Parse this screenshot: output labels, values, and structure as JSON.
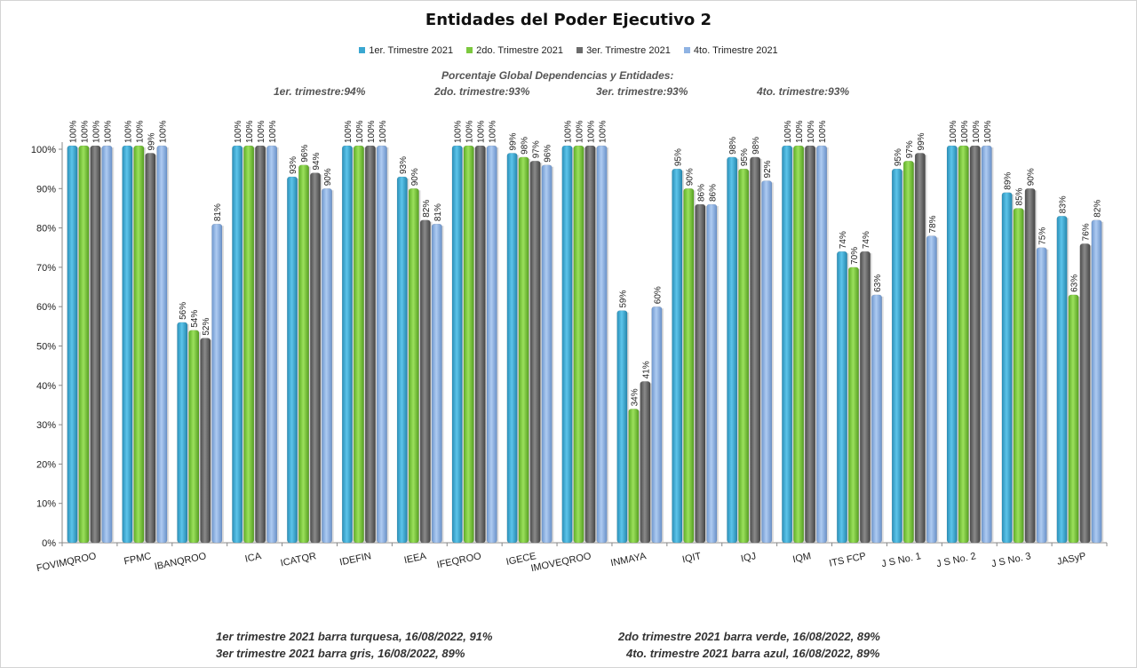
{
  "chart_data": {
    "type": "bar",
    "title": "Entidades del Poder Ejecutivo 2",
    "categories": [
      "FOVIMQROO",
      "FPMC",
      "IBANQROO",
      "ICA",
      "ICATQR",
      "IDEFIN",
      "IEEA",
      "IFEQROO",
      "IGECE",
      "IMOVEQROO",
      "INMAYA",
      "IQIT",
      "IQJ",
      "IQM",
      "ITS FCP",
      "J S No. 1",
      "J S No. 2",
      "J S No. 3",
      "JASyP"
    ],
    "series": [
      {
        "name": "1er. Trimestre 2021",
        "color": "#3aa7d1",
        "values": [
          100,
          100,
          56,
          100,
          93,
          100,
          93,
          100,
          99,
          100,
          59,
          95,
          98,
          100,
          74,
          95,
          100,
          89,
          83
        ]
      },
      {
        "name": "2do. Trimestre 2021",
        "color": "#7cc83e",
        "values": [
          100,
          100,
          54,
          100,
          96,
          100,
          90,
          100,
          98,
          100,
          34,
          90,
          95,
          100,
          70,
          97,
          100,
          85,
          63
        ]
      },
      {
        "name": "3er. Trimestre 2021",
        "color": "#6b6b6b",
        "values": [
          100,
          99,
          52,
          100,
          94,
          100,
          82,
          100,
          97,
          100,
          41,
          86,
          98,
          100,
          74,
          99,
          100,
          90,
          76
        ]
      },
      {
        "name": "4to. Trimestre 2021",
        "color": "#8fb3e3",
        "values": [
          100,
          100,
          81,
          100,
          90,
          100,
          81,
          100,
          96,
          100,
          60,
          86,
          92,
          100,
          63,
          78,
          100,
          75,
          82
        ]
      }
    ],
    "yticks": [
      "0%",
      "10%",
      "20%",
      "30%",
      "40%",
      "50%",
      "60%",
      "70%",
      "80%",
      "90%",
      "100%"
    ],
    "ylim": [
      0,
      100
    ],
    "grid": false,
    "legend_position": "top"
  },
  "notes": {
    "heading": "Porcentaje Global   Dependencias y Entidades:",
    "quarters": [
      "1er. trimestre:94%",
      "2do. trimestre:93%",
      "3er. trimestre:93%",
      "4to. trimestre:93%"
    ]
  },
  "footer": {
    "left1": "1er trimestre  2021 barra turquesa,  16/08/2022, 91%",
    "left2": "3er trimestre  2021 barra gris, 16/08/2022, 89%",
    "right1": "2do trimestre  2021 barra verde, 16/08/2022, 89%",
    "right2": "4to. trimestre  2021 barra azul, 16/08/2022, 89%"
  }
}
